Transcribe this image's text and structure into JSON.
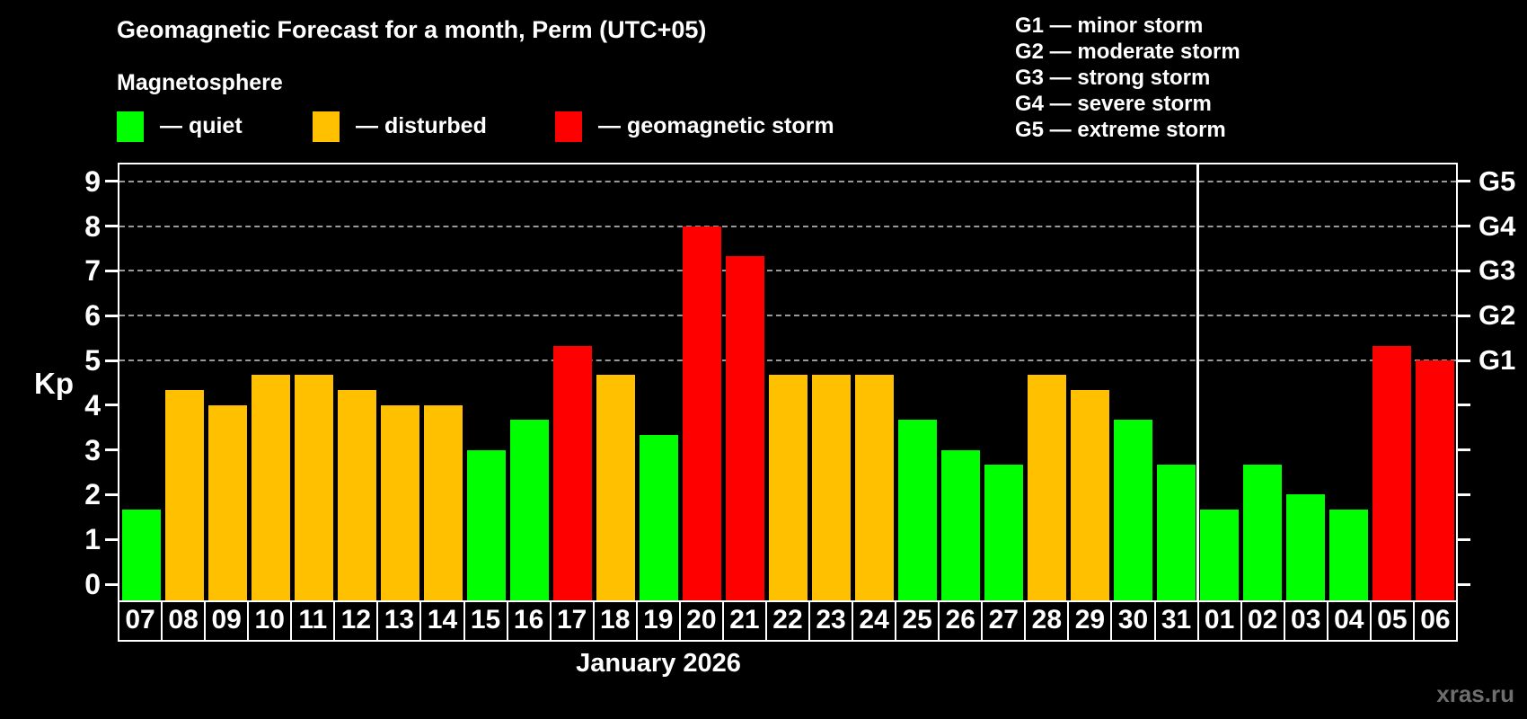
{
  "title": "Geomagnetic Forecast for a month, Perm (UTC+05)",
  "subtitle": "Magnetosphere",
  "legend": {
    "items": [
      {
        "key": "quiet",
        "label": "— quiet",
        "color": "#00ff00"
      },
      {
        "key": "disturbed",
        "label": "— disturbed",
        "color": "#ffc000"
      },
      {
        "key": "storm",
        "label": "— geomagnetic storm",
        "color": "#ff0000"
      }
    ]
  },
  "storm_scale_legend": [
    "G1 — minor storm",
    "G2 — moderate storm",
    "G3 — strong storm",
    "G4 — severe storm",
    "G5 — extreme storm"
  ],
  "y_axis": {
    "label": "Kp",
    "ticks": [
      0,
      1,
      2,
      3,
      4,
      5,
      6,
      7,
      8,
      9
    ]
  },
  "right_axis": {
    "labels": [
      {
        "text": "G1",
        "kp": 5
      },
      {
        "text": "G2",
        "kp": 6
      },
      {
        "text": "G3",
        "kp": 7
      },
      {
        "text": "G4",
        "kp": 8
      },
      {
        "text": "G5",
        "kp": 9
      }
    ]
  },
  "x_axis": {
    "month_label": "January 2026"
  },
  "watermark": "xras.ru",
  "chart_data": {
    "type": "bar",
    "title": "Geomagnetic Forecast for a month, Perm (UTC+05)",
    "xlabel": "January 2026",
    "ylabel": "Kp",
    "ylim": [
      0,
      9.4
    ],
    "gridlines_at": [
      5,
      6,
      7,
      8,
      9
    ],
    "legend_position": "top",
    "separator_after_index": 24,
    "categories": [
      "07",
      "08",
      "09",
      "10",
      "11",
      "12",
      "13",
      "14",
      "15",
      "16",
      "17",
      "18",
      "19",
      "20",
      "21",
      "22",
      "23",
      "24",
      "25",
      "26",
      "27",
      "28",
      "29",
      "30",
      "31",
      "01",
      "02",
      "03",
      "04",
      "05",
      "06"
    ],
    "values": [
      1.67,
      4.33,
      4.0,
      4.67,
      4.67,
      4.33,
      4.0,
      4.0,
      3.0,
      3.67,
      5.33,
      4.67,
      3.33,
      8.0,
      7.33,
      4.67,
      4.67,
      4.67,
      3.67,
      3.0,
      2.67,
      4.67,
      4.33,
      3.67,
      2.67,
      1.67,
      2.67,
      2.0,
      1.67,
      5.33,
      5.0
    ],
    "status": [
      "quiet",
      "disturbed",
      "disturbed",
      "disturbed",
      "disturbed",
      "disturbed",
      "disturbed",
      "disturbed",
      "quiet",
      "quiet",
      "storm",
      "disturbed",
      "quiet",
      "storm",
      "storm",
      "disturbed",
      "disturbed",
      "disturbed",
      "quiet",
      "quiet",
      "quiet",
      "disturbed",
      "disturbed",
      "quiet",
      "quiet",
      "quiet",
      "quiet",
      "quiet",
      "quiet",
      "storm",
      "storm"
    ],
    "colors": {
      "quiet": "#00ff00",
      "disturbed": "#ffc000",
      "storm": "#ff0000"
    }
  }
}
